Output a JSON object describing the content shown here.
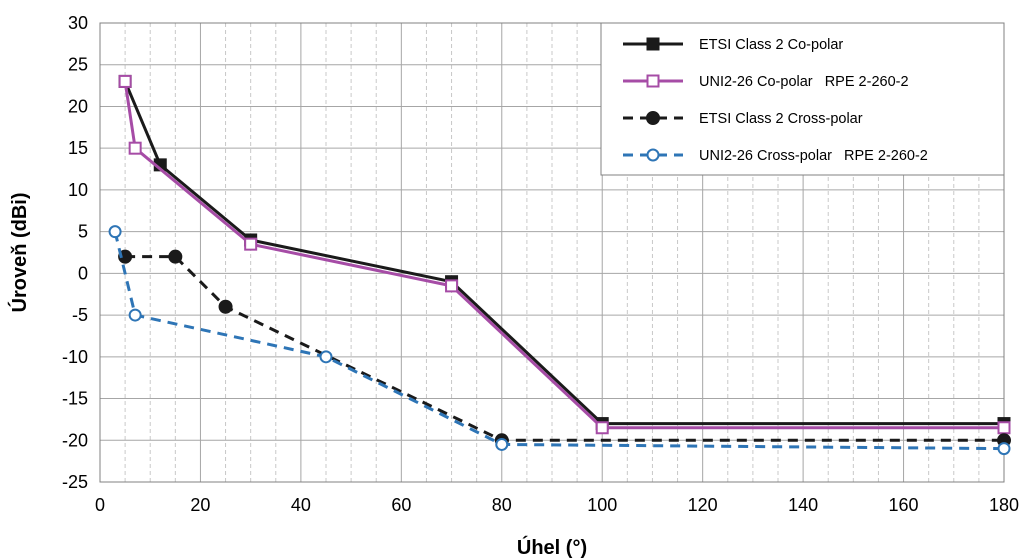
{
  "chart_data": {
    "type": "line",
    "title": "",
    "xlabel": "Úhel (°)",
    "ylabel": "Úroveň (dBi)",
    "xlim": [
      0,
      180
    ],
    "ylim": [
      -25,
      30
    ],
    "x_ticks": [
      "0",
      "20",
      "40",
      "60",
      "80",
      "100",
      "120",
      "140",
      "160",
      "180"
    ],
    "y_ticks": [
      "30",
      "25",
      "20",
      "15",
      "10",
      "5",
      "0",
      "-5",
      "-10",
      "-15",
      "-20",
      "-25"
    ],
    "grid": true,
    "legend_position": "top-right",
    "series": [
      {
        "name": "ETSI Class 2 Co-polar",
        "color": "#1a1a1a",
        "line": "solid",
        "marker": "square-filled",
        "points": [
          [
            5,
            23
          ],
          [
            12,
            13
          ],
          [
            30,
            4
          ],
          [
            70,
            -1
          ],
          [
            100,
            -18
          ],
          [
            180,
            -18
          ]
        ]
      },
      {
        "name": "UNI2-26 Co-polar   RPE 2-260-2",
        "color": "#a64ca6",
        "line": "solid",
        "marker": "square-open",
        "points": [
          [
            5,
            23
          ],
          [
            7,
            15
          ],
          [
            30,
            3.5
          ],
          [
            70,
            -1.5
          ],
          [
            100,
            -18.5
          ],
          [
            180,
            -18.5
          ]
        ]
      },
      {
        "name": "ETSI Class 2 Cross-polar",
        "color": "#1a1a1a",
        "line": "dashed",
        "marker": "circle-filled",
        "points": [
          [
            5,
            2
          ],
          [
            15,
            2
          ],
          [
            25,
            -4
          ],
          [
            80,
            -20
          ],
          [
            180,
            -20
          ]
        ]
      },
      {
        "name": "UNI2-26 Cross-polar   RPE 2-260-2",
        "color": "#2e75b6",
        "line": "dashed",
        "marker": "circle-open",
        "points": [
          [
            3,
            5
          ],
          [
            7,
            -5
          ],
          [
            45,
            -10
          ],
          [
            80,
            -20.5
          ],
          [
            180,
            -21
          ]
        ]
      }
    ]
  }
}
